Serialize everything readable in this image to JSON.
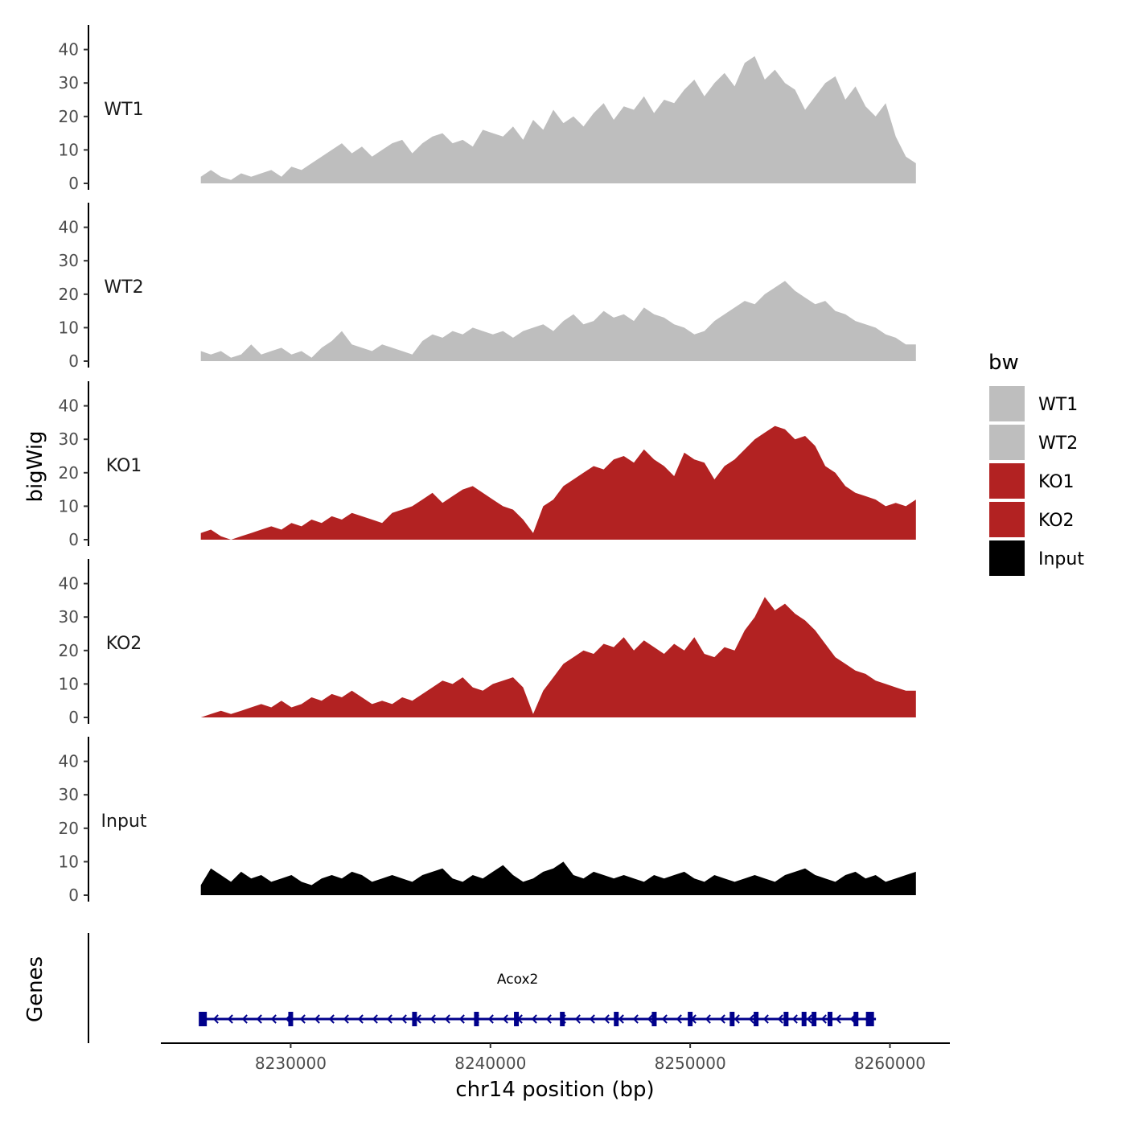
{
  "chart_data": {
    "type": "area",
    "title": "",
    "ylabel": "bigWig",
    "xlabel": "chr14 position (bp)",
    "xlim": [
      8223500,
      8263000
    ],
    "ylim": [
      0,
      45
    ],
    "yticks": [
      0,
      10,
      20,
      30,
      40
    ],
    "xticks": [
      8230000,
      8240000,
      8250000,
      8260000
    ],
    "xtick_labels": [
      "8230000",
      "8240000",
      "8250000",
      "8260000"
    ],
    "legend_title": "bw",
    "legend_position": "right",
    "series": [
      {
        "name": "WT1",
        "color": "#bebebe",
        "x_start": 8225500,
        "x_end": 8261300,
        "values": [
          2,
          4,
          2,
          1,
          3,
          2,
          3,
          4,
          2,
          5,
          4,
          6,
          8,
          10,
          12,
          9,
          11,
          8,
          10,
          12,
          13,
          9,
          12,
          14,
          15,
          12,
          13,
          11,
          16,
          15,
          14,
          17,
          13,
          19,
          16,
          22,
          18,
          20,
          17,
          21,
          24,
          19,
          23,
          22,
          26,
          21,
          25,
          24,
          28,
          31,
          26,
          30,
          33,
          29,
          36,
          38,
          31,
          34,
          30,
          28,
          22,
          26,
          30,
          32,
          25,
          29,
          23,
          20,
          24,
          14,
          8,
          6
        ]
      },
      {
        "name": "WT2",
        "color": "#bebebe",
        "x_start": 8225500,
        "x_end": 8261300,
        "values": [
          3,
          2,
          3,
          1,
          2,
          5,
          2,
          3,
          4,
          2,
          3,
          1,
          4,
          6,
          9,
          5,
          4,
          3,
          5,
          4,
          3,
          2,
          6,
          8,
          7,
          9,
          8,
          10,
          9,
          8,
          9,
          7,
          9,
          10,
          11,
          9,
          12,
          14,
          11,
          12,
          15,
          13,
          14,
          12,
          16,
          14,
          13,
          11,
          10,
          8,
          9,
          12,
          14,
          16,
          18,
          17,
          20,
          22,
          24,
          21,
          19,
          17,
          18,
          15,
          14,
          12,
          11,
          10,
          8,
          7,
          5,
          5
        ]
      },
      {
        "name": "KO1",
        "color": "#b22222",
        "x_start": 8225500,
        "x_end": 8261300,
        "values": [
          2,
          3,
          1,
          0,
          1,
          2,
          3,
          4,
          3,
          5,
          4,
          6,
          5,
          7,
          6,
          8,
          7,
          6,
          5,
          8,
          9,
          10,
          12,
          14,
          11,
          13,
          15,
          16,
          14,
          12,
          10,
          9,
          6,
          2,
          10,
          12,
          16,
          18,
          20,
          22,
          21,
          24,
          25,
          23,
          27,
          24,
          22,
          19,
          26,
          24,
          23,
          18,
          22,
          24,
          27,
          30,
          32,
          34,
          33,
          30,
          31,
          28,
          22,
          20,
          16,
          14,
          13,
          12,
          10,
          11,
          10,
          12
        ]
      },
      {
        "name": "KO2",
        "color": "#b22222",
        "x_start": 8225500,
        "x_end": 8261300,
        "values": [
          0,
          1,
          2,
          1,
          2,
          3,
          4,
          3,
          5,
          3,
          4,
          6,
          5,
          7,
          6,
          8,
          6,
          4,
          5,
          4,
          6,
          5,
          7,
          9,
          11,
          10,
          12,
          9,
          8,
          10,
          11,
          12,
          9,
          1,
          8,
          12,
          16,
          18,
          20,
          19,
          22,
          21,
          24,
          20,
          23,
          21,
          19,
          22,
          20,
          24,
          19,
          18,
          21,
          20,
          26,
          30,
          36,
          32,
          34,
          31,
          29,
          26,
          22,
          18,
          16,
          14,
          13,
          11,
          10,
          9,
          8,
          8
        ]
      },
      {
        "name": "Input",
        "color": "#000000",
        "x_start": 8225500,
        "x_end": 8261300,
        "values": [
          3,
          8,
          6,
          4,
          7,
          5,
          6,
          4,
          5,
          6,
          4,
          3,
          5,
          6,
          5,
          7,
          6,
          4,
          5,
          6,
          5,
          4,
          6,
          7,
          8,
          5,
          4,
          6,
          5,
          7,
          9,
          6,
          4,
          5,
          7,
          8,
          10,
          6,
          5,
          7,
          6,
          5,
          6,
          5,
          4,
          6,
          5,
          6,
          7,
          5,
          4,
          6,
          5,
          4,
          5,
          6,
          5,
          4,
          6,
          7,
          8,
          6,
          5,
          4,
          6,
          7,
          5,
          6,
          4,
          5,
          6,
          7
        ]
      }
    ],
    "genes": {
      "title": "Genes",
      "color": "#00008b",
      "items": [
        {
          "name": "Acox2",
          "start": 8225600,
          "end": 8259300,
          "strand": "-",
          "exons": [
            8225600,
            8230000,
            8236200,
            8239300,
            8241300,
            8243600,
            8246300,
            8248200,
            8250000,
            8252100,
            8253300,
            8254800,
            8255700,
            8256200,
            8257000,
            8258300,
            8259000
          ]
        }
      ]
    }
  }
}
